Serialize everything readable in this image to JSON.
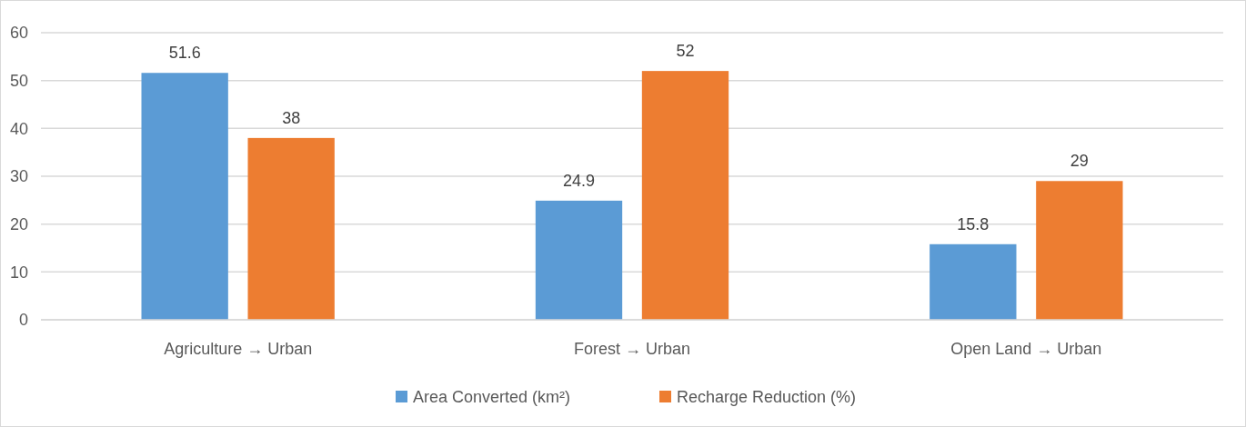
{
  "chart_data": {
    "type": "bar",
    "categories": [
      "Agriculture → Urban",
      "Forest → Urban",
      "Open Land → Urban"
    ],
    "series": [
      {
        "name": "Area Converted (km²)",
        "color": "#5b9bd5",
        "values": [
          51.6,
          24.9,
          15.8
        ]
      },
      {
        "name": "Recharge Reduction (%)",
        "color": "#ed7d31",
        "values": [
          38,
          52,
          29
        ]
      }
    ],
    "ylim": [
      0,
      60
    ],
    "yticks": [
      0,
      10,
      20,
      30,
      40,
      50,
      60
    ],
    "grid": "y",
    "legend": "bottom",
    "data_labels": true
  }
}
